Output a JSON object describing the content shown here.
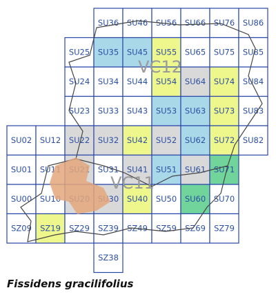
{
  "map": {
    "title": "Fissidens gracilifolius",
    "region_labels": [
      "VC12",
      "VC11"
    ],
    "cells": [
      {
        "label": "SU36"
      },
      {
        "label": "SU46"
      },
      {
        "label": "SU56"
      },
      {
        "label": "SU66"
      },
      {
        "label": "SU76"
      },
      {
        "label": "SU86"
      },
      {
        "label": "SU25"
      },
      {
        "label": "SU35",
        "color": "#a9d9e9"
      },
      {
        "label": "SU45",
        "color": "#a9d9e9"
      },
      {
        "label": "SU55",
        "color": "#eef78c"
      },
      {
        "label": "SU65"
      },
      {
        "label": "SU75"
      },
      {
        "label": "SU85"
      },
      {
        "label": "SU24"
      },
      {
        "label": "SU34"
      },
      {
        "label": "SU44"
      },
      {
        "label": "SU54",
        "color": "#eef78c"
      },
      {
        "label": "SU64",
        "color": "#d9d9d9"
      },
      {
        "label": "SU74",
        "color": "#eef78c"
      },
      {
        "label": "SU84"
      },
      {
        "label": "SU23"
      },
      {
        "label": "SU33"
      },
      {
        "label": "SU43"
      },
      {
        "label": "SU53",
        "color": "#a9d9e9"
      },
      {
        "label": "SU63",
        "color": "#a9d9e9"
      },
      {
        "label": "SU73",
        "color": "#eef78c"
      },
      {
        "label": "SU83"
      },
      {
        "label": "SU02"
      },
      {
        "label": "SU12"
      },
      {
        "label": "SU22",
        "color": "#d9d9d9"
      },
      {
        "label": "SU32",
        "color": "#d9d9d9"
      },
      {
        "label": "SU42",
        "color": "#eef78c"
      },
      {
        "label": "SU52",
        "color": "#d9d9d9"
      },
      {
        "label": "SU62",
        "color": "#a9d9e9"
      },
      {
        "label": "SU72",
        "color": "#eef78c"
      },
      {
        "label": "SU82"
      },
      {
        "label": "SU01"
      },
      {
        "label": "SU11"
      },
      {
        "label": "SU21",
        "color": "#d9d9d9"
      },
      {
        "label": "SU31"
      },
      {
        "label": "SU41",
        "color": "#d9d9d9"
      },
      {
        "label": "SU51",
        "color": "#a9d9e9"
      },
      {
        "label": "SU61",
        "color": "#d9d9d9"
      },
      {
        "label": "SU71",
        "color": "#70d49b"
      },
      {
        "label": "SU00"
      },
      {
        "label": "SU10"
      },
      {
        "label": "SU20",
        "color": "#d9d9d9"
      },
      {
        "label": "SU30",
        "color": "#d9d9d9"
      },
      {
        "label": "SU40",
        "color": "#eef78c"
      },
      {
        "label": "SU50"
      },
      {
        "label": "SU60",
        "color": "#70d49b"
      },
      {
        "label": "SU70"
      },
      {
        "label": "SZ09"
      },
      {
        "label": "SZ19",
        "color": "#eef78c"
      },
      {
        "label": "SZ29"
      },
      {
        "label": "SZ39"
      },
      {
        "label": "SZ49"
      },
      {
        "label": "SZ59"
      },
      {
        "label": "SZ69"
      },
      {
        "label": "SZ79"
      },
      {
        "label": "SZ38"
      }
    ]
  }
}
